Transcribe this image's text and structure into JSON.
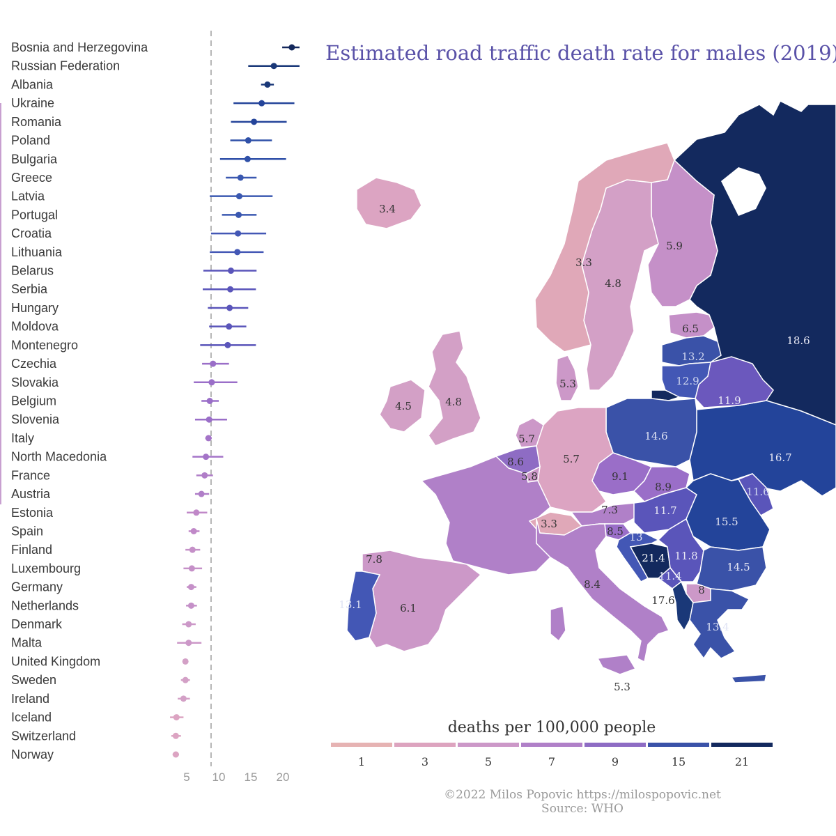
{
  "chart_data": [
    {
      "type": "scatter",
      "subtype": "dot-and-whisker",
      "title": "",
      "xlabel": "",
      "ylabel": "",
      "xlim": [
        0,
        23
      ],
      "x_ticks": [
        5,
        10,
        15,
        20
      ],
      "reference_line": 8.8,
      "grid": false,
      "points": [
        {
          "country": "Bosnia and Herzegovina",
          "estimate": 21.4,
          "low": 19.9,
          "high": 22.6,
          "color": "#14285c"
        },
        {
          "country": "Russian Federation",
          "estimate": 18.6,
          "low": 14.6,
          "high": 22.6,
          "color": "#1a3878"
        },
        {
          "country": "Albania",
          "estimate": 17.6,
          "low": 16.6,
          "high": 18.6,
          "color": "#1a3878"
        },
        {
          "country": "Ukraine",
          "estimate": 16.7,
          "low": 12.3,
          "high": 21.8,
          "color": "#24449a"
        },
        {
          "country": "Romania",
          "estimate": 15.5,
          "low": 11.9,
          "high": 20.6,
          "color": "#24449a"
        },
        {
          "country": "Poland",
          "estimate": 14.6,
          "low": 11.8,
          "high": 18.3,
          "color": "#2f50a8"
        },
        {
          "country": "Bulgaria",
          "estimate": 14.5,
          "low": 10.2,
          "high": 20.5,
          "color": "#2f50a8"
        },
        {
          "country": "Greece",
          "estimate": 13.4,
          "low": 11.1,
          "high": 15.9,
          "color": "#3a58b0"
        },
        {
          "country": "Latvia",
          "estimate": 13.2,
          "low": 8.6,
          "high": 18.4,
          "color": "#3a58b0"
        },
        {
          "country": "Portugal",
          "estimate": 13.1,
          "low": 10.5,
          "high": 15.9,
          "color": "#3a58b0"
        },
        {
          "country": "Croatia",
          "estimate": 13.0,
          "low": 8.8,
          "high": 17.4,
          "color": "#4357b5"
        },
        {
          "country": "Lithuania",
          "estimate": 12.9,
          "low": 8.6,
          "high": 17.0,
          "color": "#4357b5"
        },
        {
          "country": "Belarus",
          "estimate": 11.9,
          "low": 7.6,
          "high": 15.9,
          "color": "#5a55ba"
        },
        {
          "country": "Serbia",
          "estimate": 11.8,
          "low": 7.5,
          "high": 15.8,
          "color": "#5a55ba"
        },
        {
          "country": "Hungary",
          "estimate": 11.7,
          "low": 8.3,
          "high": 14.6,
          "color": "#5a55ba"
        },
        {
          "country": "Moldova",
          "estimate": 11.6,
          "low": 8.5,
          "high": 14.3,
          "color": "#5a55ba"
        },
        {
          "country": "Montenegro",
          "estimate": 11.4,
          "low": 7.1,
          "high": 15.8,
          "color": "#5a55ba"
        },
        {
          "country": "Czechia",
          "estimate": 9.1,
          "low": 7.4,
          "high": 11.6,
          "color": "#9a6ec8"
        },
        {
          "country": "Slovakia",
          "estimate": 8.9,
          "low": 6.1,
          "high": 12.9,
          "color": "#9a6ec8"
        },
        {
          "country": "Belgium",
          "estimate": 8.6,
          "low": 7.3,
          "high": 10.0,
          "color": "#9a6ec8"
        },
        {
          "country": "Slovenia",
          "estimate": 8.5,
          "low": 6.3,
          "high": 11.3,
          "color": "#9a6ec8"
        },
        {
          "country": "Italy",
          "estimate": 8.4,
          "low": 7.9,
          "high": 8.9,
          "color": "#a474c8"
        },
        {
          "country": "North Macedonia",
          "estimate": 8.0,
          "low": 5.9,
          "high": 10.7,
          "color": "#a474c8"
        },
        {
          "country": "France",
          "estimate": 7.8,
          "low": 6.5,
          "high": 9.1,
          "color": "#b07ec8"
        },
        {
          "country": "Austria",
          "estimate": 7.3,
          "low": 6.3,
          "high": 8.5,
          "color": "#b07ec8"
        },
        {
          "country": "Estonia",
          "estimate": 6.5,
          "low": 5.0,
          "high": 8.2,
          "color": "#c088c8"
        },
        {
          "country": "Spain",
          "estimate": 6.1,
          "low": 5.3,
          "high": 7.0,
          "color": "#c088c8"
        },
        {
          "country": "Finland",
          "estimate": 5.9,
          "low": 4.8,
          "high": 7.1,
          "color": "#c590c8"
        },
        {
          "country": "Luxembourg",
          "estimate": 5.8,
          "low": 4.5,
          "high": 7.4,
          "color": "#c590c8"
        },
        {
          "country": "Germany",
          "estimate": 5.7,
          "low": 5.0,
          "high": 6.5,
          "color": "#c590c8"
        },
        {
          "country": "Netherlands",
          "estimate": 5.7,
          "low": 4.9,
          "high": 6.6,
          "color": "#c590c8"
        },
        {
          "country": "Denmark",
          "estimate": 5.3,
          "low": 4.3,
          "high": 6.4,
          "color": "#cc98c8"
        },
        {
          "country": "Malta",
          "estimate": 5.3,
          "low": 3.5,
          "high": 7.3,
          "color": "#cc98c8"
        },
        {
          "country": "United Kingdom",
          "estimate": 4.8,
          "low": 4.4,
          "high": 5.2,
          "color": "#d3a0c6"
        },
        {
          "country": "Sweden",
          "estimate": 4.8,
          "low": 4.1,
          "high": 5.5,
          "color": "#d3a0c6"
        },
        {
          "country": "Ireland",
          "estimate": 4.5,
          "low": 3.6,
          "high": 5.5,
          "color": "#d3a0c6"
        },
        {
          "country": "Iceland",
          "estimate": 3.4,
          "low": 2.4,
          "high": 4.5,
          "color": "#dca4c2"
        },
        {
          "country": "Switzerland",
          "estimate": 3.3,
          "low": 2.6,
          "high": 4.1,
          "color": "#dca4c2"
        },
        {
          "country": "Norway",
          "estimate": 3.3,
          "low": 2.8,
          "high": 3.8,
          "color": "#dca4c2"
        }
      ]
    },
    {
      "type": "choropleth",
      "title": "Estimated road traffic death rate for males (2019)",
      "legend_title": "deaths per 100,000 people",
      "legend_breaks": [
        "1",
        "3",
        "5",
        "7",
        "9",
        "15",
        "21"
      ],
      "legend_colors": [
        "#e6b3b3",
        "#dda4bf",
        "#cc98c8",
        "#b080c8",
        "#8e6cc4",
        "#3a52a8",
        "#13295e"
      ],
      "legend_position": "bottom",
      "labels": [
        {
          "country": "Iceland",
          "value": "3.4"
        },
        {
          "country": "Norway",
          "value": "3.3"
        },
        {
          "country": "Sweden",
          "value": "4.8"
        },
        {
          "country": "Finland",
          "value": "5.9"
        },
        {
          "country": "Russian Federation",
          "value": "18.6"
        },
        {
          "country": "Estonia",
          "value": "6.5"
        },
        {
          "country": "Latvia",
          "value": "13.2"
        },
        {
          "country": "Lithuania",
          "value": "12.9"
        },
        {
          "country": "Belarus",
          "value": "11.9"
        },
        {
          "country": "Denmark",
          "value": "5.3"
        },
        {
          "country": "Ireland",
          "value": "4.5"
        },
        {
          "country": "United Kingdom",
          "value": "4.8"
        },
        {
          "country": "Netherlands",
          "value": "5.7"
        },
        {
          "country": "Belgium",
          "value": "8.6"
        },
        {
          "country": "Luxembourg",
          "value": "5.8"
        },
        {
          "country": "Germany",
          "value": "5.7"
        },
        {
          "country": "Poland",
          "value": "14.6"
        },
        {
          "country": "Ukraine",
          "value": "16.7"
        },
        {
          "country": "Czechia",
          "value": "9.1"
        },
        {
          "country": "Slovakia",
          "value": "8.9"
        },
        {
          "country": "Moldova",
          "value": "11.6"
        },
        {
          "country": "Austria",
          "value": "7.3"
        },
        {
          "country": "Hungary",
          "value": "11.7"
        },
        {
          "country": "Romania",
          "value": "15.5"
        },
        {
          "country": "Switzerland",
          "value": "3.3"
        },
        {
          "country": "Slovenia",
          "value": "8.5"
        },
        {
          "country": "Croatia",
          "value": "13"
        },
        {
          "country": "Bosnia and Herzegovina",
          "value": "21.4"
        },
        {
          "country": "Serbia",
          "value": "11.8"
        },
        {
          "country": "Montenegro",
          "value": "11.4"
        },
        {
          "country": "Bulgaria",
          "value": "14.5"
        },
        {
          "country": "North Macedonia",
          "value": "8"
        },
        {
          "country": "Albania",
          "value": "17.6"
        },
        {
          "country": "Greece",
          "value": "13.4"
        },
        {
          "country": "Portugal",
          "value": "13.1"
        },
        {
          "country": "Spain",
          "value": "6.1"
        },
        {
          "country": "France",
          "value": "7.8"
        },
        {
          "country": "Italy",
          "value": "8.4"
        },
        {
          "country": "Malta",
          "value": "5.3"
        }
      ]
    }
  ],
  "footer": {
    "credit": "©2022 Milos Popovic https://milospopovic.net",
    "source": "Source: WHO"
  }
}
